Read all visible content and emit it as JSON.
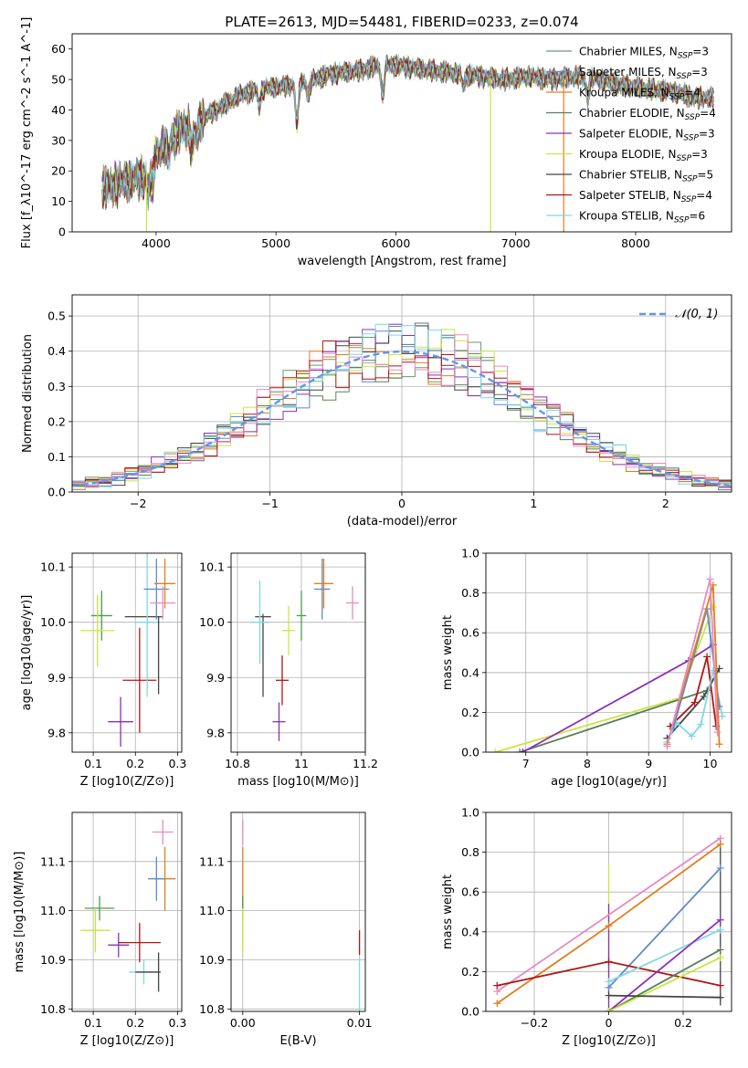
{
  "title": "PLATE=2613, MJD=54481, FIBERID=0233, z=0.074",
  "colors": {
    "Chabrier MILES": "#6a9a6a",
    "Salpeter MILES": "#5b8bd0",
    "Kroupa MILES": "#e07f1b",
    "Chabrier ELODIE": "#5a7f5a",
    "Salpeter ELODIE": "#8c2fb8",
    "Kroupa ELODIE": "#c8e63e",
    "Chabrier STELIB": "#444444",
    "Salpeter STELIB": "#b21515",
    "Kroupa STELIB": "#7fd8e3",
    "pink": "#e78ac3",
    "green": "#4c9a4c",
    "normal": "#6495ed"
  },
  "chart_data": [
    {
      "id": "spectrum",
      "type": "line",
      "xlabel": "wavelength [Angstrom, rest frame]",
      "ylabel": "Flux [f_λ10^-17 erg cm^-2 s^-1 A^-1]",
      "xlim": [
        3300,
        8800
      ],
      "ylim": [
        0,
        65
      ],
      "xticks": [
        4000,
        5000,
        6000,
        7000,
        8000
      ],
      "yticks": [
        0,
        10,
        20,
        30,
        40,
        50,
        60
      ],
      "grid": false,
      "legend_position": "top-right",
      "legend": [
        {
          "label": "Chabrier MILES, N_SSP=3",
          "color": "#6a9a6a"
        },
        {
          "label": "Salpeter MILES, N_SSP=3",
          "color": "#5b8bd0"
        },
        {
          "label": "Kroupa MILES, N_SSP=4",
          "color": "#e07f1b"
        },
        {
          "label": "Chabrier ELODIE, N_SSP=4",
          "color": "#5a7f5a"
        },
        {
          "label": "Salpeter ELODIE, N_SSP=3",
          "color": "#8c2fb8"
        },
        {
          "label": "Kroupa ELODIE, N_SSP=3",
          "color": "#c8e63e"
        },
        {
          "label": "Chabrier STELIB, N_SSP=5",
          "color": "#444444"
        },
        {
          "label": "Salpeter STELIB, N_SSP=4",
          "color": "#b21515"
        },
        {
          "label": "Kroupa STELIB, N_SSP=6",
          "color": "#7fd8e3"
        }
      ],
      "continuum": [
        [
          3550,
          14
        ],
        [
          3700,
          16
        ],
        [
          3800,
          17
        ],
        [
          3900,
          18
        ],
        [
          4000,
          26
        ],
        [
          4100,
          30
        ],
        [
          4200,
          33
        ],
        [
          4300,
          35
        ],
        [
          4500,
          40
        ],
        [
          4700,
          45
        ],
        [
          4900,
          47
        ],
        [
          5100,
          48
        ],
        [
          5300,
          50
        ],
        [
          5500,
          52
        ],
        [
          5700,
          53
        ],
        [
          5900,
          55
        ],
        [
          6100,
          54
        ],
        [
          6300,
          53
        ],
        [
          6500,
          52
        ],
        [
          6700,
          51
        ],
        [
          6900,
          50
        ],
        [
          7100,
          51
        ],
        [
          7300,
          50
        ],
        [
          7500,
          51
        ],
        [
          7700,
          50
        ],
        [
          7900,
          48
        ],
        [
          8100,
          47
        ],
        [
          8300,
          46
        ],
        [
          8500,
          44
        ],
        [
          8650,
          44
        ]
      ],
      "absorption": [
        [
          3934,
          -7
        ],
        [
          3968,
          -8
        ],
        [
          4101,
          -5
        ],
        [
          4300,
          -8
        ],
        [
          4340,
          -5
        ],
        [
          4861,
          -5
        ],
        [
          5175,
          -13
        ],
        [
          5270,
          -5
        ],
        [
          5890,
          -10
        ],
        [
          6563,
          -4
        ],
        [
          7600,
          -6
        ]
      ],
      "spikes": [
        {
          "x": 3920,
          "y": 0,
          "color": "#c8e63e"
        },
        {
          "x": 6790,
          "y": 0,
          "color": "#c8e63e"
        },
        {
          "x": 7400,
          "y": 0,
          "color": "#e07f1b"
        }
      ]
    },
    {
      "id": "residuals",
      "type": "histogram",
      "xlabel": "(data-model)/error",
      "ylabel": "Normed distribution",
      "xlim": [
        -2.5,
        2.5
      ],
      "ylim": [
        0,
        0.56
      ],
      "xticks": [
        -2,
        -1,
        0,
        1,
        2
      ],
      "yticks": [
        0.0,
        0.1,
        0.2,
        0.3,
        0.4,
        0.5
      ],
      "grid": true,
      "legend_position": "top-right",
      "normal_label": "𝒩(0, 1)",
      "bins": 50
    },
    {
      "id": "age-vs-Z",
      "type": "errorbar",
      "xlabel": "Z [log10(Z/Z⊙)]",
      "ylabel": "age  [log10(age/yr)]",
      "xlim": [
        0.05,
        0.31
      ],
      "ylim": [
        9.765,
        10.125
      ],
      "xticks": [
        0.1,
        0.2,
        0.3
      ],
      "yticks": [
        9.8,
        9.9,
        10.0,
        10.1
      ],
      "points": [
        {
          "x": 0.12,
          "y": 10.012,
          "xerr": 0.025,
          "yerr": 0.045,
          "color": "#4c9a4c"
        },
        {
          "x": 0.11,
          "y": 9.985,
          "xerr": 0.04,
          "yerr": 0.065,
          "color": "#c8e63e"
        },
        {
          "x": 0.165,
          "y": 9.82,
          "xerr": 0.03,
          "yerr": 0.045,
          "color": "#8c2fb8"
        },
        {
          "x": 0.21,
          "y": 9.895,
          "xerr": 0.04,
          "yerr": 0.095,
          "color": "#b21515"
        },
        {
          "x": 0.22,
          "y": 10.01,
          "xerr": 0.045,
          "yerr": 0.0,
          "color": "#444444"
        },
        {
          "x": 0.228,
          "y": 10.0,
          "xerr": 0.03,
          "yerr": 0.135,
          "color": "#7fd8e3"
        },
        {
          "x": 0.25,
          "y": 10.06,
          "xerr": 0.03,
          "yerr": 0.055,
          "color": "#5b8bd0"
        },
        {
          "x": 0.27,
          "y": 10.07,
          "xerr": 0.025,
          "yerr": 0.045,
          "color": "#e07f1b"
        },
        {
          "x": 0.265,
          "y": 10.035,
          "xerr": 0.03,
          "yerr": 0.03,
          "color": "#e78ac3"
        },
        {
          "x": 0.255,
          "y": 9.94,
          "xerr": 0.0,
          "yerr": 0.07,
          "color": "#444444"
        }
      ]
    },
    {
      "id": "age-vs-mass",
      "type": "errorbar",
      "xlabel": "mass [log10(M/M⊙)]",
      "ylabel": "",
      "xlim": [
        10.78,
        11.2
      ],
      "ylim": [
        9.765,
        10.125
      ],
      "xticks": [
        10.8,
        11.0,
        11.2
      ],
      "yticks": [
        9.8,
        9.9,
        10.0,
        10.1
      ],
      "points": [
        {
          "x": 10.88,
          "y": 10.01,
          "xerr": 0.025,
          "yerr": 0.0,
          "color": "#444444"
        },
        {
          "x": 10.88,
          "y": 9.94,
          "xerr": 0.0,
          "yerr": 0.075,
          "color": "#444444"
        },
        {
          "x": 10.87,
          "y": 10.0,
          "xerr": 0.03,
          "yerr": 0.075,
          "color": "#7fd8e3"
        },
        {
          "x": 10.96,
          "y": 9.985,
          "xerr": 0.02,
          "yerr": 0.045,
          "color": "#c8e63e"
        },
        {
          "x": 10.94,
          "y": 9.895,
          "xerr": 0.02,
          "yerr": 0.045,
          "color": "#b21515"
        },
        {
          "x": 10.93,
          "y": 9.82,
          "xerr": 0.02,
          "yerr": 0.035,
          "color": "#8c2fb8"
        },
        {
          "x": 11.0,
          "y": 10.012,
          "xerr": 0.015,
          "yerr": 0.045,
          "color": "#4c9a4c"
        },
        {
          "x": 11.065,
          "y": 10.06,
          "xerr": 0.025,
          "yerr": 0.055,
          "color": "#5b8bd0"
        },
        {
          "x": 11.07,
          "y": 10.07,
          "xerr": 0.03,
          "yerr": 0.045,
          "color": "#e07f1b"
        },
        {
          "x": 11.16,
          "y": 10.035,
          "xerr": 0.02,
          "yerr": 0.03,
          "color": "#e78ac3"
        }
      ]
    },
    {
      "id": "weight-vs-age",
      "type": "line",
      "xlabel": "age  [log10(age/yr)]",
      "ylabel": "mass weight",
      "xlim": [
        6.35,
        10.35
      ],
      "ylim": [
        0,
        1.0
      ],
      "xticks": [
        7,
        8,
        9,
        10
      ],
      "yticks": [
        0.0,
        0.2,
        0.4,
        0.6,
        0.8,
        1.0
      ],
      "series": [
        {
          "color": "#c8e63e",
          "points": [
            [
              6.5,
              0.0
            ],
            [
              9.5,
              0.27
            ],
            [
              10.05,
              0.73
            ]
          ]
        },
        {
          "color": "#5a7f5a",
          "points": [
            [
              6.9,
              0.0
            ],
            [
              9.95,
              0.31
            ],
            [
              10.15,
              0.42
            ]
          ]
        },
        {
          "color": "#8c2fb8",
          "points": [
            [
              6.95,
              0.0
            ],
            [
              9.65,
              0.46
            ],
            [
              10.05,
              0.54
            ]
          ]
        },
        {
          "color": "#444444",
          "points": [
            [
              9.3,
              0.07
            ],
            [
              9.9,
              0.28
            ],
            [
              10.15,
              0.42
            ]
          ]
        },
        {
          "color": "#b21515",
          "points": [
            [
              9.35,
              0.13
            ],
            [
              9.75,
              0.25
            ],
            [
              9.95,
              0.48
            ],
            [
              10.1,
              0.13
            ]
          ]
        },
        {
          "color": "#7fd8e3",
          "points": [
            [
              9.3,
              0.05
            ],
            [
              9.45,
              0.15
            ],
            [
              9.7,
              0.08
            ],
            [
              9.85,
              0.14
            ],
            [
              10.05,
              0.41
            ],
            [
              10.2,
              0.18
            ]
          ]
        },
        {
          "color": "#5b8bd0",
          "points": [
            [
              9.4,
              0.12
            ],
            [
              9.95,
              0.72
            ],
            [
              10.15,
              0.23
            ]
          ]
        },
        {
          "color": "#e07f1b",
          "points": [
            [
              9.3,
              0.04
            ],
            [
              10.05,
              0.84
            ],
            [
              10.15,
              0.04
            ]
          ]
        },
        {
          "color": "#e78ac3",
          "points": [
            [
              9.3,
              0.03
            ],
            [
              10.0,
              0.87
            ],
            [
              10.12,
              0.1
            ]
          ]
        }
      ]
    },
    {
      "id": "mass-vs-Z",
      "type": "errorbar",
      "xlabel": "Z [log10(Z/Z⊙)]",
      "ylabel": "mass [log10(M/M⊙)]",
      "xlim": [
        0.05,
        0.31
      ],
      "ylim": [
        10.795,
        11.2
      ],
      "xticks": [
        0.1,
        0.2,
        0.3
      ],
      "yticks": [
        10.8,
        10.9,
        11.0,
        11.1
      ],
      "points": [
        {
          "x": 0.265,
          "y": 11.16,
          "xerr": 0.025,
          "yerr": 0.025,
          "color": "#e78ac3"
        },
        {
          "x": 0.27,
          "y": 11.065,
          "xerr": 0.025,
          "yerr": 0.065,
          "color": "#e07f1b"
        },
        {
          "x": 0.25,
          "y": 11.065,
          "xerr": 0.02,
          "yerr": 0.045,
          "color": "#5b8bd0"
        },
        {
          "x": 0.115,
          "y": 11.005,
          "xerr": 0.035,
          "yerr": 0.025,
          "color": "#4c9a4c"
        },
        {
          "x": 0.105,
          "y": 10.96,
          "xerr": 0.035,
          "yerr": 0.045,
          "color": "#c8e63e"
        },
        {
          "x": 0.16,
          "y": 10.93,
          "xerr": 0.025,
          "yerr": 0.025,
          "color": "#8c2fb8"
        },
        {
          "x": 0.21,
          "y": 10.935,
          "xerr": 0.05,
          "yerr": 0.04,
          "color": "#b21515"
        },
        {
          "x": 0.22,
          "y": 10.875,
          "xerr": 0.035,
          "yerr": 0.025,
          "color": "#7fd8e3"
        },
        {
          "x": 0.23,
          "y": 10.875,
          "xerr": 0.03,
          "yerr": 0.0,
          "color": "#444444"
        },
        {
          "x": 0.255,
          "y": 10.875,
          "xerr": 0.0,
          "yerr": 0.04,
          "color": "#444444"
        }
      ]
    },
    {
      "id": "mass-vs-EBV",
      "type": "errorbar",
      "xlabel": "E(B-V)",
      "ylabel": "",
      "xlim": [
        -0.001,
        0.0105
      ],
      "ylim": [
        10.795,
        11.2
      ],
      "xticks": [
        0.0,
        0.01
      ],
      "xticklabels": [
        "0.00",
        "0.01"
      ],
      "yticks": [
        10.8,
        10.9,
        11.0,
        11.1
      ],
      "points": [
        {
          "x": 0.0,
          "y": 11.16,
          "xerr": 0.0,
          "yerr": 0.025,
          "color": "#e78ac3"
        },
        {
          "x": 0.0,
          "y": 11.065,
          "xerr": 0.0,
          "yerr": 0.065,
          "color": "#e07f1b"
        },
        {
          "x": 0.0,
          "y": 11.005,
          "xerr": 0.0,
          "yerr": 0.025,
          "color": "#4c9a4c"
        },
        {
          "x": 0.0,
          "y": 10.96,
          "xerr": 0.0,
          "yerr": 0.045,
          "color": "#c8e63e"
        },
        {
          "x": 0.01,
          "y": 10.935,
          "xerr": 0.0,
          "yerr": 0.025,
          "color": "#b21515"
        },
        {
          "x": 0.01,
          "y": 10.85,
          "xerr": 0.0,
          "yerr": 0.055,
          "color": "#7fd8e3"
        }
      ]
    },
    {
      "id": "weight-vs-Z",
      "type": "line",
      "xlabel": "Z [log10(Z/Z⊙)]",
      "ylabel": "mass weight",
      "xlim": [
        -0.33,
        0.33
      ],
      "ylim": [
        0,
        1.0
      ],
      "xticks": [
        -0.2,
        0.0,
        0.2
      ],
      "yticks": [
        0.0,
        0.2,
        0.4,
        0.6,
        0.8,
        1.0
      ],
      "series": [
        {
          "color": "#e78ac3",
          "points": [
            [
              -0.3,
              0.1
            ],
            [
              0.3,
              0.87
            ]
          ]
        },
        {
          "color": "#e07f1b",
          "points": [
            [
              -0.3,
              0.04
            ],
            [
              0.0,
              0.43
            ],
            [
              0.3,
              0.84
            ]
          ]
        },
        {
          "color": "#5b8bd0",
          "points": [
            [
              0.0,
              0.12
            ],
            [
              0.3,
              0.72
            ]
          ]
        },
        {
          "color": "#b21515",
          "points": [
            [
              -0.3,
              0.13
            ],
            [
              0.0,
              0.25
            ],
            [
              0.3,
              0.13
            ]
          ]
        },
        {
          "color": "#7fd8e3",
          "points": [
            [
              0.0,
              0.15
            ],
            [
              0.3,
              0.41
            ]
          ]
        },
        {
          "color": "#8c2fb8",
          "points": [
            [
              0.0,
              0.0
            ],
            [
              0.3,
              0.46
            ]
          ]
        },
        {
          "color": "#5a7f5a",
          "points": [
            [
              0.0,
              0.0
            ],
            [
              0.3,
              0.31
            ]
          ]
        },
        {
          "color": "#c8e63e",
          "points": [
            [
              0.0,
              0.0
            ],
            [
              0.3,
              0.27
            ]
          ]
        },
        {
          "color": "#444444",
          "points": [
            [
              0.0,
              0.08
            ],
            [
              0.3,
              0.07
            ]
          ]
        }
      ],
      "vbars": [
        {
          "x": 0.0,
          "ylo": 0.0,
          "yhi": 0.74,
          "color": "#c8e63e"
        },
        {
          "x": 0.0,
          "ylo": 0.0,
          "yhi": 0.54,
          "color": "#8c2fb8"
        },
        {
          "x": 0.3,
          "ylo": 0.03,
          "yhi": 0.87,
          "color": "#444444"
        }
      ]
    }
  ]
}
